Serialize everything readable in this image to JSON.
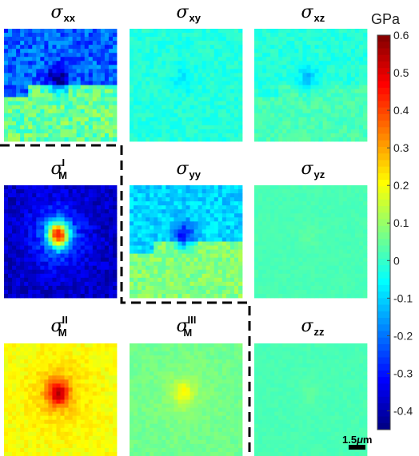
{
  "chart_data": {
    "type": "heatmap",
    "colormap": "jet",
    "colorbar": {
      "unit": "GPa",
      "range": [
        -0.45,
        0.6
      ],
      "ticks": [
        0.6,
        0.5,
        0.4,
        0.3,
        0.2,
        0.1,
        0,
        -0.1,
        -0.2,
        -0.3,
        -0.4
      ],
      "tick_labels": [
        "0.6",
        "0.5",
        "0.4",
        "0.3",
        "0.2",
        "0.1",
        "0",
        "-0.1",
        "-0.2",
        "-0.3",
        "-0.4"
      ]
    },
    "panels": [
      {
        "symbol": "σ",
        "sub": "xx",
        "sup": "",
        "background": -0.22,
        "lower_background": 0.05,
        "hotspot": -0.45,
        "noise": 0.08
      },
      {
        "symbol": "σ",
        "sub": "xy",
        "sup": "",
        "background": -0.02,
        "lower_background": -0.02,
        "hotspot": -0.08,
        "noise": 0.03
      },
      {
        "symbol": "σ",
        "sub": "xz",
        "sup": "",
        "background": -0.02,
        "lower_background": 0.02,
        "hotspot": -0.12,
        "noise": 0.03
      },
      {
        "symbol": "σ",
        "sub": "M",
        "sup": "I",
        "background": -0.38,
        "lower_background": -0.38,
        "hotspot": 0.3,
        "noise": 0.05
      },
      {
        "symbol": "σ",
        "sub": "yy",
        "sup": "",
        "background": -0.1,
        "lower_background": 0.08,
        "hotspot": -0.3,
        "noise": 0.05
      },
      {
        "symbol": "σ",
        "sub": "yz",
        "sup": "",
        "background": 0.02,
        "lower_background": 0.02,
        "hotspot": 0.04,
        "noise": 0.01
      },
      {
        "symbol": "σ",
        "sub": "M",
        "sup": "II",
        "background": 0.2,
        "lower_background": 0.2,
        "hotspot": 0.48,
        "noise": 0.03
      },
      {
        "symbol": "σ",
        "sub": "M",
        "sup": "III",
        "background": 0.06,
        "lower_background": 0.06,
        "hotspot": 0.18,
        "noise": 0.02
      },
      {
        "symbol": "σ",
        "sub": "zz",
        "sup": "",
        "background": 0.02,
        "lower_background": 0.02,
        "hotspot": 0.04,
        "noise": 0.01
      }
    ],
    "scale_bar": {
      "value": "1.5",
      "unit_symbol": "μ",
      "unit": "m"
    }
  }
}
